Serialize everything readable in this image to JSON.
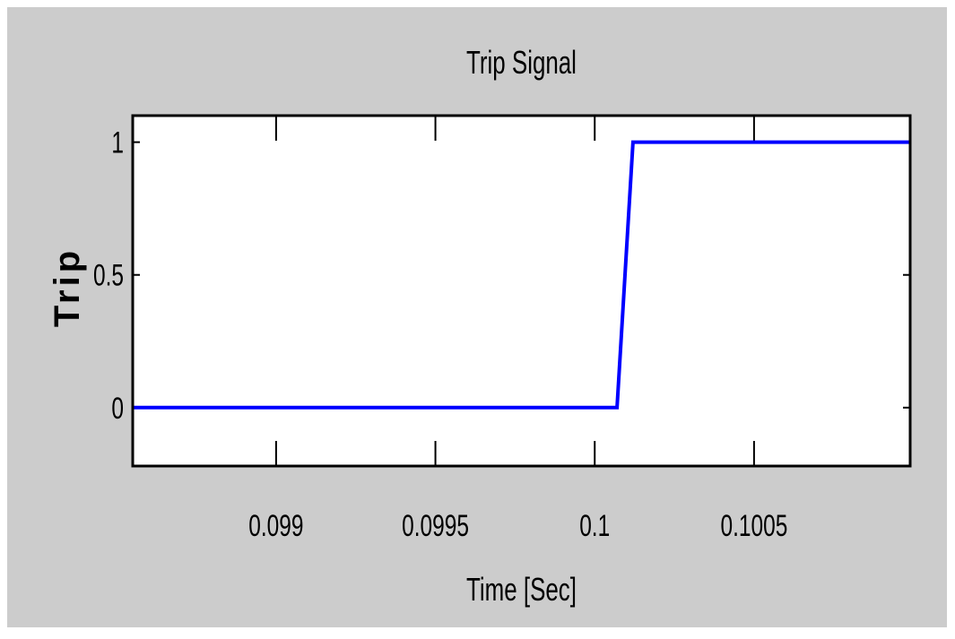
{
  "colors": {
    "figure_background": "#cccccc",
    "axes_background": "#ffffff",
    "line": "#0000ff",
    "axes": "#000000"
  },
  "chart_data": {
    "type": "line",
    "title": "Trip Signal",
    "xlabel": "Time [Sec]",
    "ylabel": "Trip",
    "xlim": [
      0.09855,
      0.10099
    ],
    "ylim": [
      -0.22,
      1.1
    ],
    "xticks": [
      0.099,
      0.0995,
      0.1,
      0.1005
    ],
    "xtick_labels": [
      "0.099",
      "0.0995",
      "0.1",
      "0.1005"
    ],
    "yticks": [
      0,
      0.5,
      1
    ],
    "ytick_labels": [
      "0",
      "0.5",
      "1"
    ],
    "grid": false,
    "series": [
      {
        "x": [
          0.09855,
          0.10007,
          0.10012,
          0.10099
        ],
        "y": [
          0,
          0,
          1,
          1
        ]
      }
    ]
  }
}
